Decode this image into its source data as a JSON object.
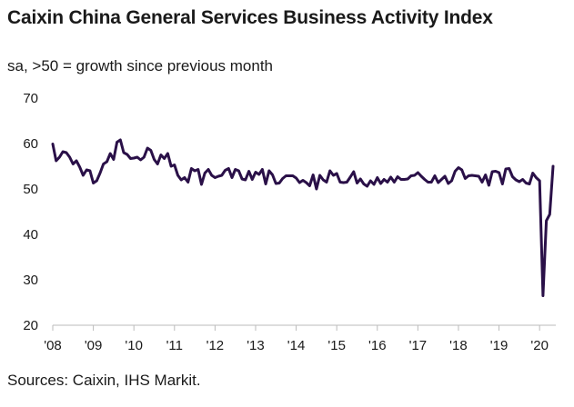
{
  "colors": {
    "line": "#2a1048",
    "axis": "#bbbbbb",
    "text": "#1a1a1a"
  },
  "chart_data": {
    "type": "line",
    "title": "Caixin China General Services Business Activity Index",
    "subtitle": "sa, >50 = growth since previous month",
    "source": "Sources: Caixin, IHS Markit.",
    "xlabel": "",
    "ylabel": "",
    "ylim": [
      20,
      70
    ],
    "grid": false,
    "y_ticks": [
      {
        "value": 70,
        "label": "70"
      },
      {
        "value": 60,
        "label": "60"
      },
      {
        "value": 50,
        "label": "50"
      },
      {
        "value": 40,
        "label": "40"
      },
      {
        "value": 30,
        "label": "30"
      },
      {
        "value": 20,
        "label": "20"
      }
    ],
    "x_ticks": [
      {
        "value": 2008,
        "label": "'08"
      },
      {
        "value": 2009,
        "label": "'09"
      },
      {
        "value": 2010,
        "label": "'10"
      },
      {
        "value": 2011,
        "label": "'11"
      },
      {
        "value": 2012,
        "label": "'12"
      },
      {
        "value": 2013,
        "label": "'13"
      },
      {
        "value": 2014,
        "label": "'14"
      },
      {
        "value": 2015,
        "label": "'15"
      },
      {
        "value": 2016,
        "label": "'16"
      },
      {
        "value": 2017,
        "label": "'17"
      },
      {
        "value": 2018,
        "label": "'18"
      },
      {
        "value": 2019,
        "label": "'19"
      },
      {
        "value": 2020,
        "label": "'20"
      }
    ],
    "x_range": [
      2008,
      2020.4
    ],
    "series": [
      {
        "name": "Caixin China General Services Business Activity Index",
        "start": 2008.0,
        "step": 0.0833333,
        "values": [
          59.9,
          56.2,
          57.0,
          58.2,
          58.0,
          57.0,
          55.5,
          56.2,
          54.8,
          53.0,
          54.2,
          54.0,
          51.3,
          51.8,
          53.5,
          55.5,
          56.0,
          57.8,
          56.5,
          60.3,
          60.8,
          58.0,
          57.6,
          56.7,
          56.8,
          57.0,
          56.4,
          57.0,
          59.0,
          58.5,
          56.5,
          55.5,
          57.5,
          56.7,
          57.8,
          55.0,
          55.3,
          53.0,
          52.0,
          52.5,
          51.5,
          54.5,
          54.0,
          54.3,
          51.0,
          53.5,
          54.3,
          53.0,
          52.5,
          52.8,
          53.0,
          54.1,
          54.5,
          52.5,
          54.3,
          54.0,
          52.2,
          52.0,
          53.9,
          52.1,
          53.7,
          53.2,
          54.3,
          51.1,
          54.0,
          53.1,
          51.2,
          51.3,
          52.3,
          52.9,
          52.9,
          52.9,
          52.4,
          51.4,
          51.9,
          51.4,
          50.7,
          53.1,
          50.0,
          53.0,
          52.0,
          51.5,
          54.0,
          53.0,
          53.4,
          51.5,
          51.4,
          51.5,
          52.6,
          53.8,
          51.3,
          52.2,
          51.1,
          50.6,
          51.8,
          51.0,
          52.5,
          51.2,
          52.1,
          51.5,
          52.6,
          51.5,
          52.7,
          52.1,
          52.1,
          52.2,
          52.9,
          53.0,
          53.6,
          52.8,
          52.1,
          51.5,
          51.5,
          52.9,
          51.4,
          52.1,
          52.8,
          51.2,
          51.8,
          53.9,
          54.7,
          54.2,
          52.3,
          52.9,
          53.0,
          52.9,
          52.8,
          51.5,
          53.1,
          50.8,
          53.8,
          53.9,
          53.6,
          51.1,
          54.4,
          54.5,
          52.7,
          52.0,
          51.6,
          52.1,
          51.3,
          51.1,
          53.5,
          52.5,
          51.8,
          26.5,
          43.0,
          44.4,
          55.0
        ]
      }
    ]
  }
}
